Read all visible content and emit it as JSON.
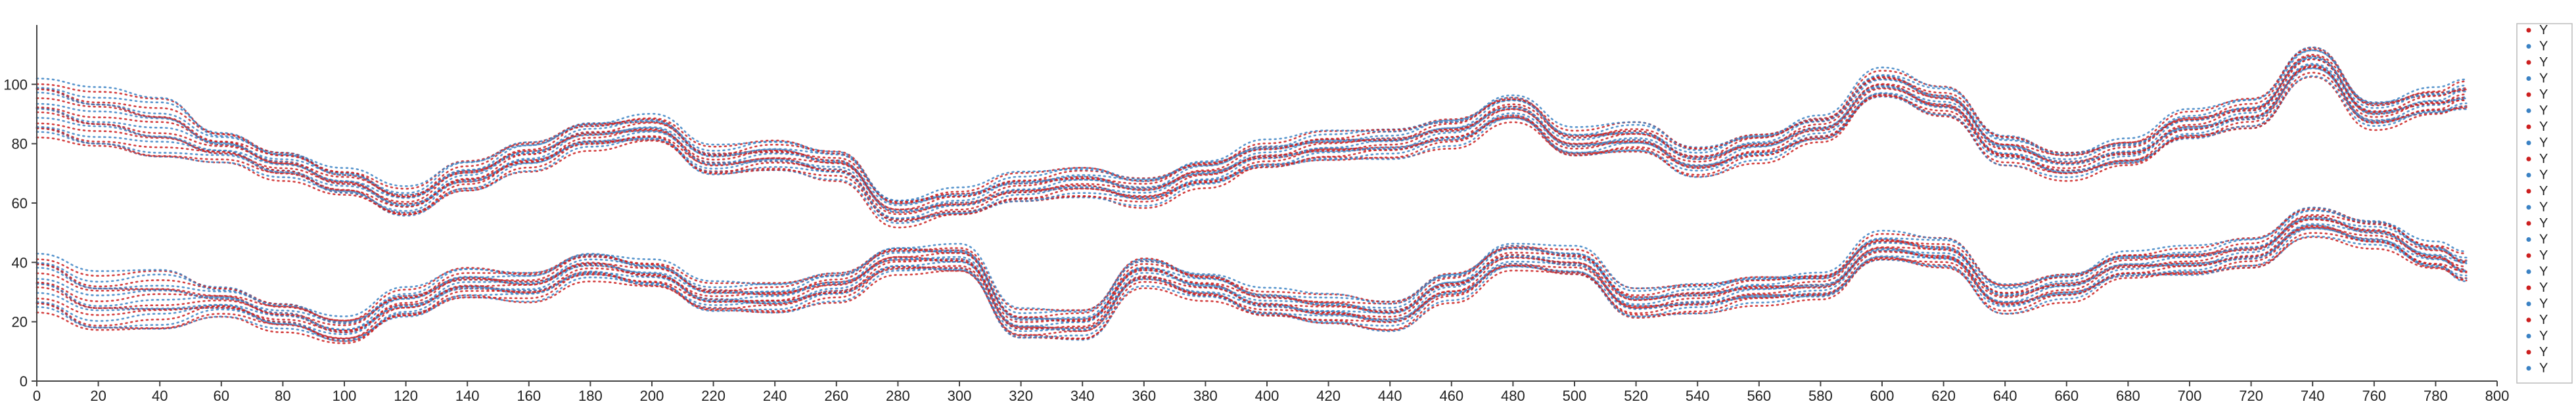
{
  "chart_data": {
    "type": "scatter",
    "title": "",
    "xlabel": "",
    "ylabel": "",
    "xlim": [
      0,
      800
    ],
    "ylim": [
      0,
      120
    ],
    "x_ticks": [
      0,
      20,
      40,
      60,
      80,
      100,
      120,
      140,
      160,
      180,
      200,
      220,
      240,
      260,
      280,
      300,
      320,
      340,
      360,
      380,
      400,
      420,
      440,
      460,
      480,
      500,
      520,
      540,
      560,
      580,
      600,
      620,
      640,
      660,
      680,
      700,
      720,
      740,
      760,
      780,
      800
    ],
    "y_ticks": [
      0,
      20,
      40,
      60,
      80,
      100
    ],
    "grid": false,
    "legend_position": "right",
    "colors": {
      "red": "#cc1f1f",
      "blue": "#3b82c4"
    },
    "legend": [
      {
        "label": "Y",
        "color": "#cc1f1f"
      },
      {
        "label": "Y",
        "color": "#3b82c4"
      },
      {
        "label": "Y",
        "color": "#cc1f1f"
      },
      {
        "label": "Y",
        "color": "#3b82c4"
      },
      {
        "label": "Y",
        "color": "#cc1f1f"
      },
      {
        "label": "Y",
        "color": "#3b82c4"
      },
      {
        "label": "Y",
        "color": "#cc1f1f"
      },
      {
        "label": "Y",
        "color": "#3b82c4"
      },
      {
        "label": "Y",
        "color": "#cc1f1f"
      },
      {
        "label": "Y",
        "color": "#3b82c4"
      },
      {
        "label": "Y",
        "color": "#cc1f1f"
      },
      {
        "label": "Y",
        "color": "#3b82c4"
      },
      {
        "label": "Y",
        "color": "#cc1f1f"
      },
      {
        "label": "Y",
        "color": "#3b82c4"
      },
      {
        "label": "Y",
        "color": "#cc1f1f"
      },
      {
        "label": "Y",
        "color": "#3b82c4"
      },
      {
        "label": "Y",
        "color": "#cc1f1f"
      },
      {
        "label": "Y",
        "color": "#3b82c4"
      },
      {
        "label": "Y",
        "color": "#cc1f1f"
      },
      {
        "label": "Y",
        "color": "#3b82c4"
      },
      {
        "label": "Y",
        "color": "#cc1f1f"
      },
      {
        "label": "Y",
        "color": "#3b82c4"
      }
    ],
    "upper_center_path": {
      "x": [
        0,
        20,
        40,
        60,
        80,
        100,
        120,
        140,
        160,
        180,
        200,
        220,
        240,
        260,
        280,
        300,
        320,
        340,
        360,
        380,
        400,
        420,
        440,
        460,
        480,
        500,
        520,
        540,
        560,
        580,
        600,
        620,
        640,
        660,
        680,
        700,
        720,
        740,
        760,
        780,
        790
      ],
      "y": [
        92,
        88,
        85,
        79,
        73,
        67,
        60,
        69,
        76,
        83,
        85,
        74,
        76,
        73,
        57,
        60,
        65,
        67,
        64,
        70,
        76,
        79,
        80,
        84,
        92,
        80,
        82,
        74,
        79,
        85,
        100,
        94,
        78,
        73,
        77,
        86,
        90,
        108,
        90,
        94,
        96
      ]
    },
    "lower_center_path": {
      "x": [
        0,
        20,
        40,
        60,
        80,
        100,
        120,
        140,
        160,
        180,
        200,
        220,
        240,
        260,
        280,
        300,
        320,
        340,
        360,
        380,
        400,
        420,
        440,
        460,
        480,
        500,
        520,
        540,
        560,
        580,
        600,
        620,
        640,
        660,
        680,
        700,
        720,
        740,
        760,
        780,
        790
      ],
      "y": [
        33,
        26,
        27,
        27,
        22,
        17,
        26,
        33,
        32,
        39,
        36,
        28,
        28,
        32,
        41,
        41,
        19,
        19,
        37,
        32,
        26,
        24,
        22,
        32,
        42,
        40,
        26,
        28,
        31,
        32,
        45,
        43,
        28,
        32,
        39,
        40,
        43,
        54,
        50,
        42,
        38
      ]
    },
    "trajectory_count_per_band": 22,
    "band_spread": 9
  }
}
